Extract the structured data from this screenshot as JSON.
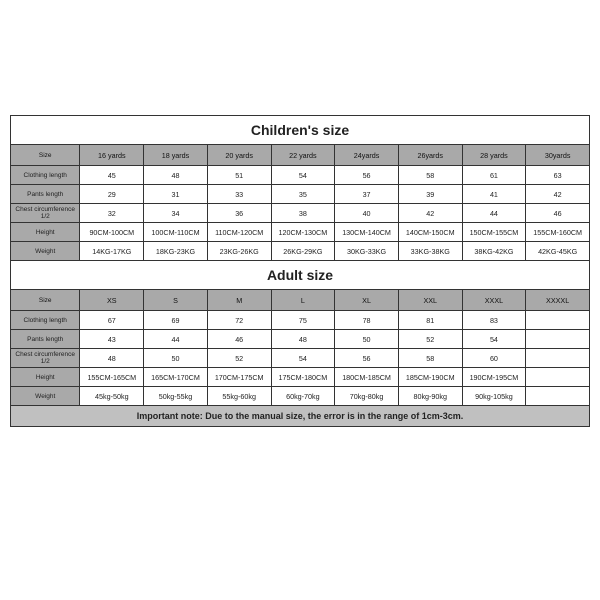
{
  "children": {
    "title": "Children's size",
    "header": [
      "Size",
      "16 yards",
      "18 yards",
      "20 yards",
      "22 yards",
      "24yards",
      "26yards",
      "28 yards",
      "30yards"
    ],
    "rows": [
      {
        "label": "Clothing length",
        "v": [
          "45",
          "48",
          "51",
          "54",
          "56",
          "58",
          "61",
          "63"
        ]
      },
      {
        "label": "Pants length",
        "v": [
          "29",
          "31",
          "33",
          "35",
          "37",
          "39",
          "41",
          "42"
        ]
      },
      {
        "label": "Chest circumference 1/2",
        "v": [
          "32",
          "34",
          "36",
          "38",
          "40",
          "42",
          "44",
          "46"
        ]
      },
      {
        "label": "Height",
        "v": [
          "90CM-100CM",
          "100CM-110CM",
          "110CM-120CM",
          "120CM-130CM",
          "130CM-140CM",
          "140CM-150CM",
          "150CM-155CM",
          "155CM-160CM"
        ]
      },
      {
        "label": "Weight",
        "v": [
          "14KG-17KG",
          "18KG-23KG",
          "23KG-26KG",
          "26KG-29KG",
          "30KG-33KG",
          "33KG-38KG",
          "38KG-42KG",
          "42KG-45KG"
        ]
      }
    ]
  },
  "adult": {
    "title": "Adult size",
    "header": [
      "Size",
      "XS",
      "S",
      "M",
      "L",
      "XL",
      "XXL",
      "XXXL",
      "XXXXL"
    ],
    "rows": [
      {
        "label": "Clothing length",
        "v": [
          "67",
          "69",
          "72",
          "75",
          "78",
          "81",
          "83",
          ""
        ]
      },
      {
        "label": "Pants length",
        "v": [
          "43",
          "44",
          "46",
          "48",
          "50",
          "52",
          "54",
          ""
        ]
      },
      {
        "label": "Chest circumference 1/2",
        "v": [
          "48",
          "50",
          "52",
          "54",
          "56",
          "58",
          "60",
          ""
        ]
      },
      {
        "label": "Height",
        "v": [
          "155CM-165CM",
          "165CM-170CM",
          "170CM-175CM",
          "175CM-180CM",
          "180CM-185CM",
          "185CM-190CM",
          "190CM-195CM",
          ""
        ]
      },
      {
        "label": "Weight",
        "v": [
          "45kg-50kg",
          "50kg-55kg",
          "55kg-60kg",
          "60kg-70kg",
          "70kg-80kg",
          "80kg-90kg",
          "90kg-105kg",
          ""
        ]
      }
    ]
  },
  "note": "Important note: Due to the manual size, the error is in the range of 1cm-3cm."
}
